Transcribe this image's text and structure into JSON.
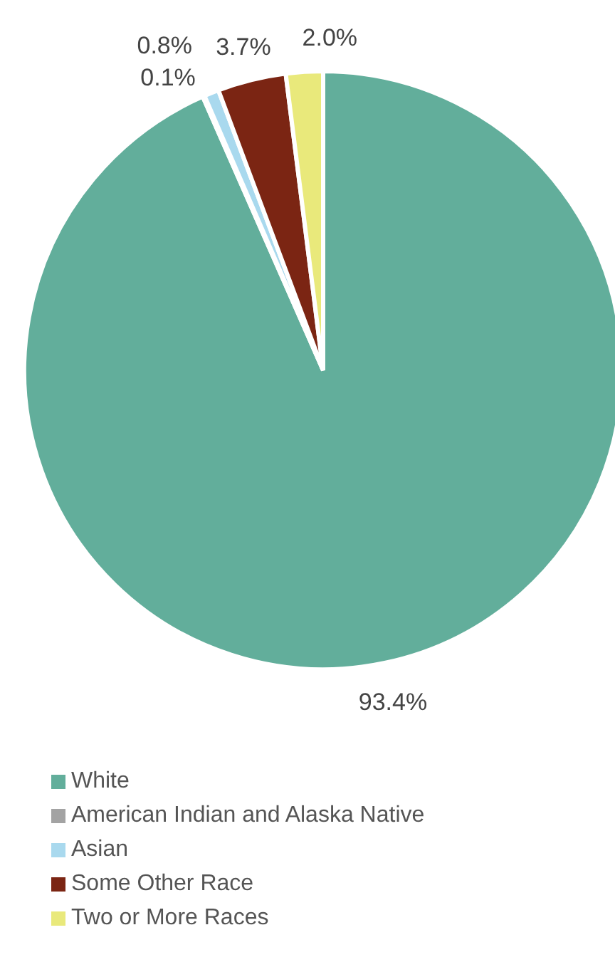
{
  "chart_data": {
    "type": "pie",
    "categories": [
      "White",
      "American Indian and Alaska Native",
      "Asian",
      "Some Other Race",
      "Two or More Races"
    ],
    "values": [
      93.4,
      0.1,
      0.8,
      3.7,
      2.0
    ],
    "value_labels": [
      "93.4%",
      "0.1%",
      "0.8%",
      "3.7%",
      "2.0%"
    ],
    "colors": [
      "#62ae9b",
      "#a3a3a3",
      "#a9d9ee",
      "#7b2513",
      "#e9e97b"
    ],
    "legend": "bottom left"
  }
}
